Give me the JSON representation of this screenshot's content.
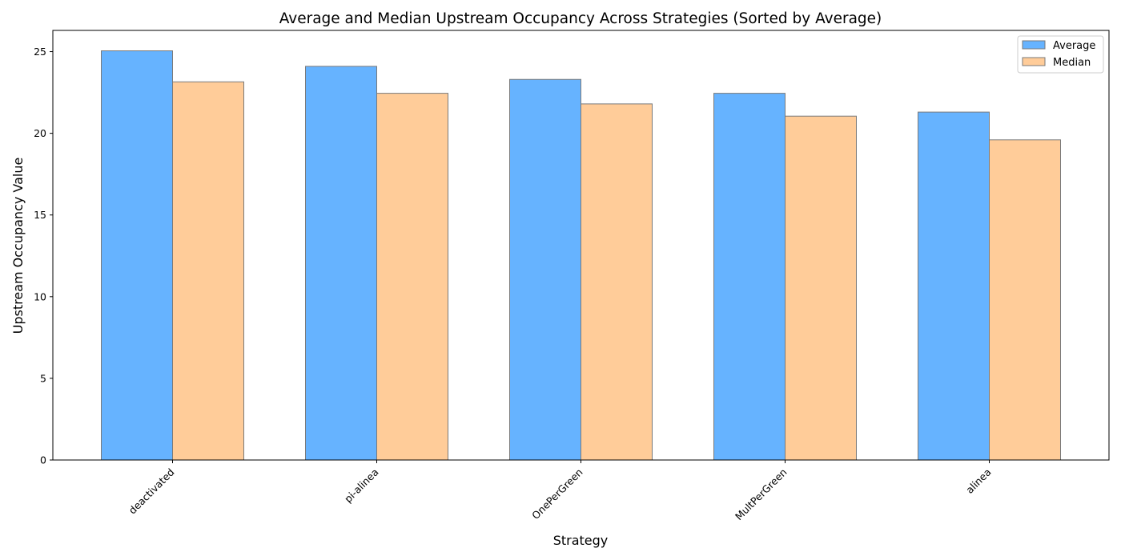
{
  "chart_data": {
    "type": "bar",
    "title": "Average and Median Upstream Occupancy Across Strategies (Sorted by Average)",
    "xlabel": "Strategy",
    "ylabel": "Upstream Occupancy Value",
    "categories": [
      "deactivated",
      "pi-alinea",
      "OnePerGreen",
      "MultPerGreen",
      "alinea"
    ],
    "series": [
      {
        "name": "Average",
        "color": "#66b3ff",
        "values": [
          25.05,
          24.1,
          23.3,
          22.45,
          21.3
        ]
      },
      {
        "name": "Median",
        "color": "#ffcc99",
        "values": [
          23.15,
          22.45,
          21.8,
          21.05,
          19.6
        ]
      }
    ],
    "ylim": [
      0,
      26.3
    ],
    "yticks": [
      0,
      5,
      10,
      15,
      20,
      25
    ],
    "grid": false,
    "legend_position": "top-right",
    "edge_color": "#7a7a7a"
  }
}
